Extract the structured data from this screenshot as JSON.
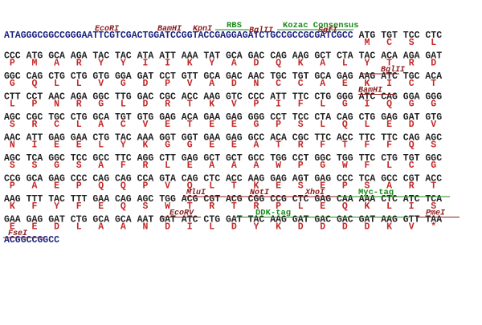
{
  "lines": [
    {
      "lead": "ATAGGGCGGCCGGGAATTCGTCGACTGGATCCGGTACCGAGGAGATCTGCCGCCGCGATCGCC",
      "codons": [
        "ATG",
        "TGT",
        "TCC",
        "CTC"
      ],
      "aa": [
        "M",
        "C",
        "S",
        "L"
      ],
      "annotations": [
        "EcoRI",
        "BamHI",
        "KpnI",
        "RBS",
        "BglII",
        "Kozac Consensus",
        "SgfI"
      ]
    },
    {
      "codons": [
        "CCC",
        "ATG",
        "GCA",
        "AGA",
        "TAC",
        "TAC",
        "ATA",
        "ATT",
        "AAA",
        "TAT",
        "GCA",
        "GAC",
        "CAG",
        "AAG",
        "GCT",
        "CTA",
        "TAC",
        "ACA",
        "AGA",
        "GAT"
      ],
      "aa": [
        "P",
        "M",
        "A",
        "R",
        "Y",
        "Y",
        "I",
        "I",
        "K",
        "Y",
        "A",
        "D",
        "Q",
        "K",
        "A",
        "L",
        "Y",
        "T",
        "R",
        "D"
      ]
    },
    {
      "codons": [
        "GGC",
        "CAG",
        "CTG",
        "CTG",
        "GTG",
        "GGA",
        "GAT",
        "CCT",
        "GTT",
        "GCA",
        "GAC",
        "AAC",
        "TGC",
        "TGT",
        "GCA",
        "GAG",
        "AAG",
        "ATC",
        "TGC",
        "ACA"
      ],
      "aa": [
        "G",
        "Q",
        "L",
        "L",
        "V",
        "G",
        "D",
        "P",
        "V",
        "A",
        "D",
        "N",
        "C",
        "C",
        "A",
        "E",
        "K",
        "I",
        "C",
        "T"
      ],
      "annotations": [
        "BglII"
      ]
    },
    {
      "codons": [
        "CTT",
        "CCT",
        "AAC",
        "AGA",
        "GGC",
        "TTG",
        "GAC",
        "CGC",
        "ACC",
        "AAG",
        "GTC",
        "CCC",
        "ATT",
        "TTC",
        "CTG",
        "GGG",
        "ATC",
        "CAG",
        "GGA",
        "GGG"
      ],
      "aa": [
        "L",
        "P",
        "N",
        "R",
        "G",
        "L",
        "D",
        "R",
        "T",
        "K",
        "V",
        "P",
        "I",
        "F",
        "L",
        "G",
        "I",
        "Q",
        "G",
        "G"
      ],
      "annotations": [
        "BamHI"
      ]
    },
    {
      "codons": [
        "AGC",
        "CGC",
        "TGC",
        "CTG",
        "GCA",
        "TGT",
        "GTG",
        "GAG",
        "ACA",
        "GAA",
        "GAG",
        "GGG",
        "CCT",
        "TCC",
        "CTA",
        "CAG",
        "CTG",
        "GAG",
        "GAT",
        "GTG"
      ],
      "aa": [
        "S",
        "R",
        "C",
        "L",
        "A",
        "C",
        "V",
        "E",
        "T",
        "E",
        "E",
        "G",
        "P",
        "S",
        "L",
        "Q",
        "L",
        "E",
        "D",
        "V"
      ]
    },
    {
      "codons": [
        "AAC",
        "ATT",
        "GAG",
        "GAA",
        "CTG",
        "TAC",
        "AAA",
        "GGT",
        "GGT",
        "GAA",
        "GAG",
        "GCC",
        "ACA",
        "CGC",
        "TTC",
        "ACC",
        "TTC",
        "TTC",
        "CAG",
        "AGC"
      ],
      "aa": [
        "N",
        "I",
        "E",
        "E",
        "L",
        "Y",
        "K",
        "G",
        "G",
        "E",
        "E",
        "A",
        "T",
        "R",
        "F",
        "T",
        "F",
        "F",
        "Q",
        "S"
      ]
    },
    {
      "codons": [
        "AGC",
        "TCA",
        "GGC",
        "TCC",
        "GCC",
        "TTC",
        "AGG",
        "CTT",
        "GAG",
        "GCT",
        "GCT",
        "GCC",
        "TGG",
        "CCT",
        "GGC",
        "TGG",
        "TTC",
        "CTG",
        "TGT",
        "GGC"
      ],
      "aa": [
        "S",
        "S",
        "G",
        "S",
        "A",
        "F",
        "R",
        "L",
        "E",
        "A",
        "A",
        "A",
        "W",
        "P",
        "G",
        "W",
        "F",
        "L",
        "C",
        "G"
      ]
    },
    {
      "codons": [
        "CCG",
        "GCA",
        "GAG",
        "CCC",
        "CAG",
        "CAG",
        "CCA",
        "GTA",
        "CAG",
        "CTC",
        "ACC",
        "AAG",
        "GAG",
        "AGT",
        "GAG",
        "CCC",
        "TCA",
        "GCC",
        "CGT",
        "ACC"
      ],
      "aa": [
        "P",
        "A",
        "E",
        "P",
        "Q",
        "Q",
        "P",
        "V",
        "Q",
        "L",
        "T",
        "K",
        "E",
        "S",
        "E",
        "P",
        "S",
        "A",
        "R",
        "T"
      ]
    },
    {
      "codons": [
        "AAG",
        "TTT",
        "TAC",
        "TTT",
        "GAA",
        "CAG",
        "AGC",
        "TGG",
        "ACG",
        "CGT",
        "ACG",
        "CGG",
        "CCG",
        "CTC",
        "GAG",
        "CAA",
        "AAA",
        "CTC",
        "ATC",
        "TCA"
      ],
      "aa": [
        "K",
        "F",
        "Y",
        "F",
        "E",
        "Q",
        "S",
        "W",
        "T",
        "R",
        "T",
        "R",
        "P",
        "L",
        "E",
        "Q",
        "K",
        "L",
        "I",
        "S"
      ],
      "annotations": [
        "MluI",
        "NotI",
        "XhoI",
        "Myc-tag"
      ]
    },
    {
      "codons": [
        "GAA",
        "GAG",
        "GAT",
        "CTG",
        "GCA",
        "GCA",
        "AAT",
        "GAT",
        "ATC",
        "CTG",
        "GAT",
        "TAC",
        "AAG",
        "GAT",
        "GAC",
        "GAC",
        "GAT",
        "AAG",
        "GTT",
        "TAA"
      ],
      "aa": [
        "E",
        "E",
        "D",
        "L",
        "A",
        "A",
        "N",
        "D",
        "I",
        "L",
        "D",
        "Y",
        "K",
        "D",
        "D",
        "D",
        "D",
        "K",
        "V",
        "*"
      ],
      "annotations": [
        "EcoRV",
        "DDK-tag",
        "PmeI"
      ]
    },
    {
      "lead": "ACGGCCGGCC",
      "annotations": [
        "FseI"
      ]
    }
  ]
}
